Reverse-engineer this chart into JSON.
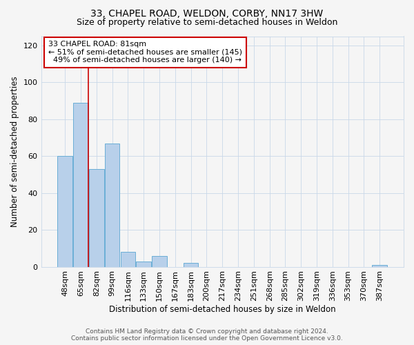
{
  "title": "33, CHAPEL ROAD, WELDON, CORBY, NN17 3HW",
  "subtitle": "Size of property relative to semi-detached houses in Weldon",
  "xlabel": "Distribution of semi-detached houses by size in Weldon",
  "ylabel": "Number of semi-detached properties",
  "footer_line1": "Contains HM Land Registry data © Crown copyright and database right 2024.",
  "footer_line2": "Contains public sector information licensed under the Open Government Licence v3.0.",
  "categories": [
    "48sqm",
    "65sqm",
    "82sqm",
    "99sqm",
    "116sqm",
    "133sqm",
    "150sqm",
    "167sqm",
    "183sqm",
    "200sqm",
    "217sqm",
    "234sqm",
    "251sqm",
    "268sqm",
    "285sqm",
    "302sqm",
    "319sqm",
    "336sqm",
    "353sqm",
    "370sqm",
    "387sqm"
  ],
  "values": [
    60,
    89,
    53,
    67,
    8,
    3,
    6,
    0,
    2,
    0,
    0,
    0,
    0,
    0,
    0,
    0,
    0,
    0,
    0,
    0,
    1
  ],
  "bar_color": "#b8d0ea",
  "bar_edgecolor": "#6aaed6",
  "property_label": "33 CHAPEL ROAD: 81sqm",
  "pct_smaller": 51,
  "count_smaller": 145,
  "pct_larger": 49,
  "count_larger": 140,
  "vline_color": "#cc0000",
  "annotation_box_edgecolor": "#cc0000",
  "ylim": [
    0,
    125
  ],
  "yticks": [
    0,
    20,
    40,
    60,
    80,
    100,
    120
  ],
  "background_color": "#f5f5f5",
  "grid_color": "#c8d8e8",
  "title_fontsize": 10,
  "subtitle_fontsize": 9,
  "xlabel_fontsize": 8.5,
  "ylabel_fontsize": 8.5,
  "tick_fontsize": 8,
  "ann_fontsize": 8
}
